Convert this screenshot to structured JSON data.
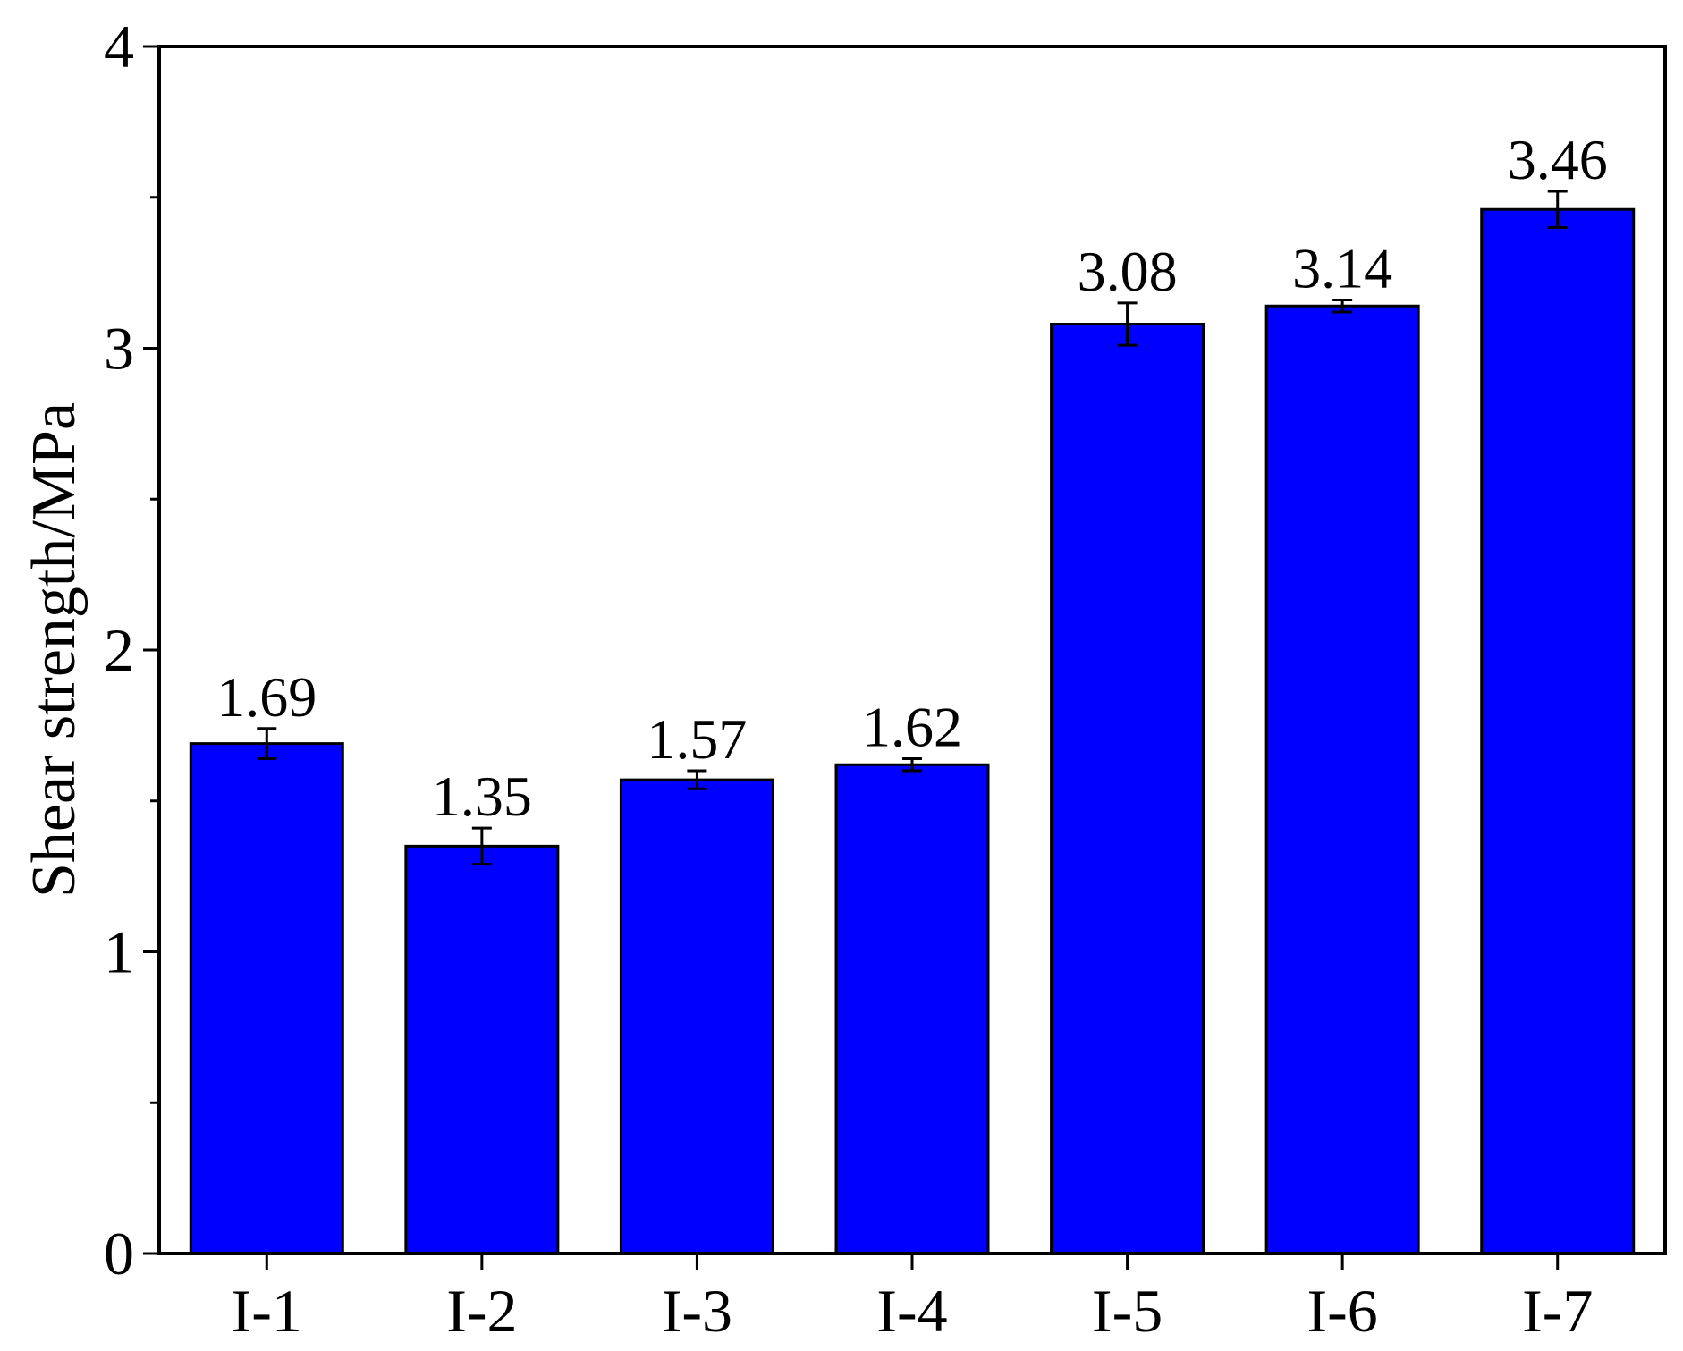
{
  "chart_data": {
    "type": "bar",
    "title": "",
    "xlabel": "",
    "ylabel": "Shear strength/MPa",
    "categories": [
      "I-1",
      "I-2",
      "I-3",
      "I-4",
      "I-5",
      "I-6",
      "I-7"
    ],
    "values": [
      1.69,
      1.35,
      1.57,
      1.62,
      3.08,
      3.14,
      3.46
    ],
    "value_labels": [
      "1.69",
      "1.35",
      "1.57",
      "1.62",
      "3.08",
      "3.14",
      "3.46"
    ],
    "error": [
      0.05,
      0.06,
      0.03,
      0.02,
      0.07,
      0.02,
      0.06
    ],
    "ylim": [
      0,
      4
    ],
    "yticks": [
      0,
      1,
      2,
      3,
      4
    ],
    "yticks_labels": [
      "0",
      "1",
      "2",
      "3",
      "4"
    ],
    "yminor_ticks": [
      0.5,
      1.5,
      2.5,
      3.5
    ],
    "grid": false,
    "legend": "none",
    "bar_color": "#0000ff",
    "edge_color": "#000000"
  }
}
